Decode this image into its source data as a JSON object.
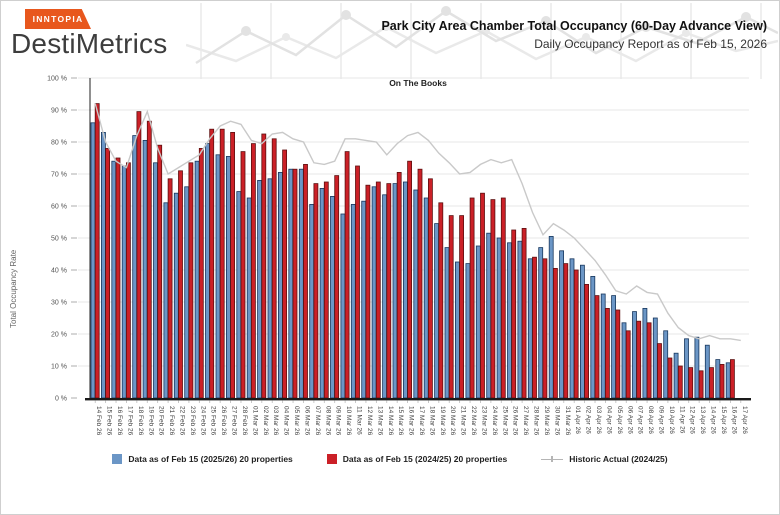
{
  "header": {
    "logo": {
      "badge": "INNTOPIA",
      "name": "DestiMetrics",
      "badge_color": "#E8571D"
    },
    "title": "Park City Area Chamber Total Occupancy (60-Day Advance View)",
    "subtitle": "Daily Occupancy Report as of Feb 15, 2026"
  },
  "chart_data": {
    "type": "bar",
    "subtype": "grouped bars with overlay line",
    "title": "On The Books",
    "xlabel": "",
    "ylabel": "Total Occupancy Rate",
    "ylim": [
      0,
      100
    ],
    "y_tick_step": 10,
    "y_tick_suffix": " %",
    "grid": true,
    "legend_position": "bottom",
    "categories": [
      "14 Feb 26",
      "15 Feb 26",
      "16 Feb 26",
      "17 Feb 26",
      "18 Feb 26",
      "19 Feb 26",
      "20 Feb 26",
      "21 Feb 26",
      "22 Feb 26",
      "23 Feb 26",
      "24 Feb 26",
      "25 Feb 26",
      "26 Feb 26",
      "27 Feb 26",
      "28 Feb 26",
      "01 Mar 26",
      "02 Mar 26",
      "03 Mar 26",
      "04 Mar 26",
      "05 Mar 26",
      "06 Mar 26",
      "07 Mar 26",
      "08 Mar 26",
      "09 Mar 26",
      "10 Mar 26",
      "11 Mar 26",
      "12 Mar 26",
      "13 Mar 26",
      "14 Mar 26",
      "15 Mar 26",
      "16 Mar 26",
      "17 Mar 26",
      "18 Mar 26",
      "19 Mar 26",
      "20 Mar 26",
      "21 Mar 26",
      "22 Mar 26",
      "23 Mar 26",
      "24 Mar 26",
      "25 Mar 26",
      "26 Mar 26",
      "27 Mar 26",
      "28 Mar 26",
      "29 Mar 26",
      "30 Mar 26",
      "31 Mar 26",
      "01 Apr 26",
      "02 Apr 26",
      "03 Apr 26",
      "04 Apr 26",
      "05 Apr 26",
      "06 Apr 26",
      "07 Apr 26",
      "08 Apr 26",
      "09 Apr 26",
      "10 Apr 26",
      "11 Apr 26",
      "12 Apr 26",
      "13 Apr 26",
      "14 Apr 26",
      "15 Apr 26",
      "16 Apr 26",
      "17 Apr 26"
    ],
    "series": [
      {
        "name": "Data as of Feb 15 (2025/26) 20 properties",
        "type": "bar",
        "color": "#6B96C6",
        "border": "#17375E",
        "values": [
          86,
          83,
          74,
          72.5,
          82,
          80.5,
          73.5,
          61,
          64,
          66,
          74,
          79.5,
          76,
          75.5,
          64.5,
          62.5,
          68,
          68.5,
          70.5,
          71.5,
          71.5,
          60.5,
          65.5,
          63,
          57.5,
          60.5,
          61.5,
          66,
          63.5,
          67,
          67.5,
          65,
          62.5,
          54.5,
          47,
          42.5,
          42,
          47.5,
          51.5,
          50,
          48.5,
          49,
          43.5,
          47,
          50.5,
          46,
          43.5,
          41.5,
          38,
          32.5,
          32,
          23.5,
          27,
          28,
          25,
          21,
          14,
          18.5,
          19,
          16.5,
          12,
          11,
          null
        ]
      },
      {
        "name": "Data as of Feb 15 (2024/25) 20 properties",
        "type": "bar",
        "color": "#CB2027",
        "border": "#5E1010",
        "values": [
          92,
          78,
          75,
          73.5,
          89.5,
          86.5,
          79,
          68.5,
          71,
          73.5,
          78,
          84,
          84,
          83,
          77,
          79.5,
          82.5,
          81,
          77.5,
          71.5,
          73,
          67,
          67.5,
          69.5,
          77,
          72.5,
          66.5,
          67.5,
          67,
          70.5,
          74,
          71.5,
          68.5,
          61,
          57,
          57,
          62.5,
          64,
          62,
          62.5,
          52.5,
          53,
          44,
          43.5,
          40.5,
          42,
          40,
          35.5,
          32,
          28,
          27.5,
          21,
          24,
          23.5,
          17,
          12.5,
          10,
          9.5,
          8.5,
          9.5,
          10.5,
          12,
          null
        ]
      },
      {
        "name": "Historic Actual (2024/25)",
        "type": "line",
        "color": "#C9C9C9",
        "values": [
          92,
          80,
          74,
          72,
          82,
          89.5,
          78,
          70,
          72,
          74,
          76,
          81,
          85,
          86.5,
          85.5,
          80.5,
          79.5,
          82.5,
          83,
          81,
          80,
          73.5,
          73,
          74,
          81,
          81,
          80.5,
          80,
          76,
          79.5,
          82,
          83,
          80.5,
          76.5,
          73.5,
          70,
          70.5,
          73,
          74.5,
          73.5,
          74.5,
          67,
          58,
          51,
          54.5,
          52.5,
          50,
          46.5,
          43,
          38.5,
          33.5,
          32.5,
          35,
          33,
          32.5,
          26.5,
          22,
          19.5,
          18.5,
          19.5,
          18.5,
          18.5,
          18
        ]
      }
    ]
  }
}
